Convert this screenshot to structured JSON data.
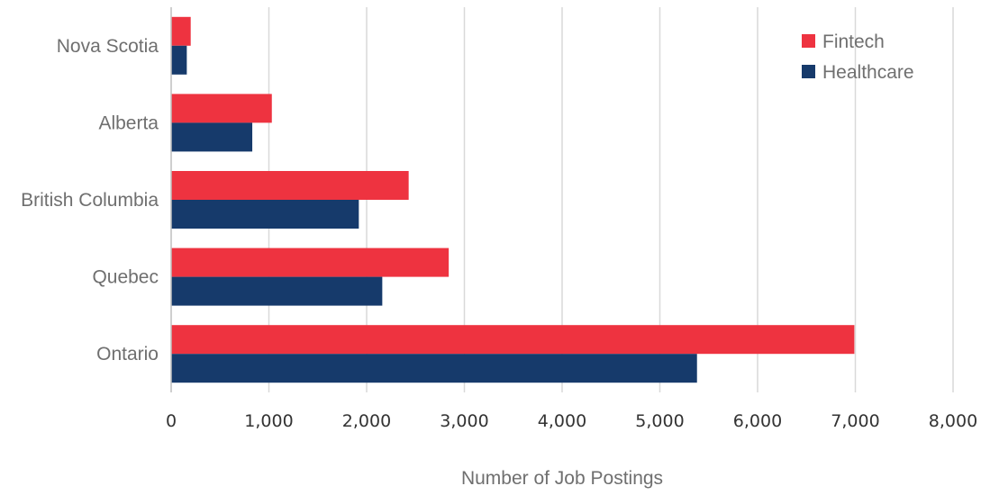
{
  "chart_data": {
    "type": "bar",
    "orientation": "horizontal",
    "categories": [
      "Nova Scotia",
      "Alberta",
      "British Columbia",
      "Quebec",
      "Ontario"
    ],
    "series": [
      {
        "name": "Fintech",
        "color": "#ee3340",
        "values": [
          200,
          1030,
          2430,
          2840,
          6990
        ]
      },
      {
        "name": "Healthcare",
        "color": "#163a6b",
        "values": [
          160,
          830,
          1920,
          2160,
          5380
        ]
      }
    ],
    "xlabel": "Number of Job Postings",
    "ylabel": "",
    "xlim": [
      0,
      8000
    ],
    "xticks": [
      "0",
      "1,000",
      "2,000",
      "3,000",
      "4,000",
      "5,000",
      "6,000",
      "7,000",
      "8,000"
    ],
    "grid": "vertical",
    "legend_position": "top-right"
  }
}
